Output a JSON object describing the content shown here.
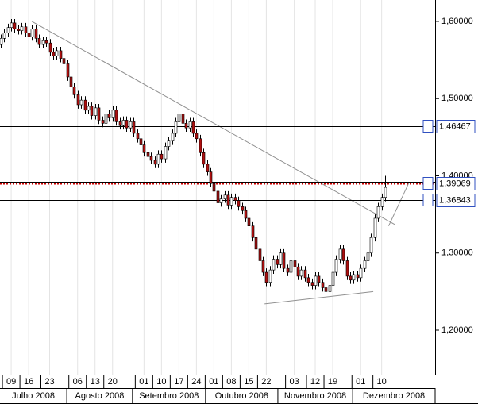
{
  "chart_data": {
    "type": "candlestick",
    "up_color": "#ffffff",
    "down_color": "#b01010",
    "ylim": [
      1.1527,
      1.6277
    ],
    "yticks": [
      {
        "value": 1.6,
        "label": "1,60000"
      },
      {
        "value": 1.5,
        "label": "1,50000"
      },
      {
        "value": 1.4,
        "label": "1,40000"
      },
      {
        "value": 1.3,
        "label": "1,30000"
      },
      {
        "value": 1.2,
        "label": "1,20000"
      }
    ],
    "xlim": [
      -0.2,
      124.3
    ],
    "xticks": [
      {
        "value": 3,
        "label": "09"
      },
      {
        "value": 8,
        "label": "16"
      },
      {
        "value": 14,
        "label": "23"
      },
      {
        "value": 22,
        "label": "06"
      },
      {
        "value": 27,
        "label": "13"
      },
      {
        "value": 32,
        "label": "20"
      },
      {
        "value": 41,
        "label": "01"
      },
      {
        "value": 46,
        "label": "10"
      },
      {
        "value": 51,
        "label": "17"
      },
      {
        "value": 56,
        "label": "24"
      },
      {
        "value": 61,
        "label": "01"
      },
      {
        "value": 66,
        "label": "08"
      },
      {
        "value": 71,
        "label": "15"
      },
      {
        "value": 76,
        "label": "22"
      },
      {
        "value": 84,
        "label": "03"
      },
      {
        "value": 90,
        "label": "12"
      },
      {
        "value": 95,
        "label": "19"
      },
      {
        "value": 103,
        "label": "01"
      },
      {
        "value": 109,
        "label": "10"
      }
    ],
    "months": [
      "Julho 2008",
      "Agosto 2008",
      "Setembro 2008",
      "Outubro 2008",
      "Novembro 2008",
      "Dezembro 2008"
    ],
    "month_edges": [
      -0.2,
      18.9,
      37.7,
      58.6,
      79.3,
      100.7,
      124.3
    ],
    "levels": [
      {
        "value": 1.46467,
        "label": "1,46467",
        "color": "#000000"
      },
      {
        "value": 1.3923,
        "color": "#000000"
      },
      {
        "value": 1.39069,
        "label": "1,39069",
        "color": "#d00000",
        "style": "dotted"
      },
      {
        "value": 1.36843,
        "label": "1,36843",
        "color": "#000000"
      }
    ],
    "trendlines": [
      {
        "x": [
          8.9,
          112.7
        ],
        "y": [
          1.6,
          1.337
        ]
      },
      {
        "x": [
          75.5,
          106.6
        ],
        "y": [
          1.234,
          1.25
        ]
      },
      {
        "x": [
          111,
          116.8
        ],
        "y": [
          1.335,
          1.391
        ]
      }
    ],
    "ohlc": [
      [
        1.57,
        1.583,
        1.565,
        1.578
      ],
      [
        1.578,
        1.59,
        1.573,
        1.585
      ],
      [
        1.585,
        1.597,
        1.58,
        1.592
      ],
      [
        1.592,
        1.603,
        1.587,
        1.598
      ],
      [
        1.598,
        1.603,
        1.585,
        1.59
      ],
      [
        1.59,
        1.595,
        1.583,
        1.588
      ],
      [
        1.588,
        1.598,
        1.583,
        1.593
      ],
      [
        1.593,
        1.598,
        1.58,
        1.585
      ],
      [
        1.585,
        1.59,
        1.575,
        1.58
      ],
      [
        1.58,
        1.595,
        1.575,
        1.59
      ],
      [
        1.59,
        1.595,
        1.573,
        1.578
      ],
      [
        1.578,
        1.583,
        1.565,
        1.57
      ],
      [
        1.57,
        1.58,
        1.565,
        1.575
      ],
      [
        1.575,
        1.58,
        1.567,
        1.572
      ],
      [
        1.572,
        1.577,
        1.555,
        1.56
      ],
      [
        1.56,
        1.565,
        1.55,
        1.555
      ],
      [
        1.555,
        1.567,
        1.55,
        1.562
      ],
      [
        1.562,
        1.567,
        1.547,
        1.552
      ],
      [
        1.552,
        1.557,
        1.54,
        1.545
      ],
      [
        1.545,
        1.55,
        1.523,
        1.528
      ],
      [
        1.528,
        1.533,
        1.51,
        1.515
      ],
      [
        1.515,
        1.52,
        1.5,
        1.505
      ],
      [
        1.505,
        1.51,
        1.487,
        1.492
      ],
      [
        1.492,
        1.503,
        1.487,
        1.498
      ],
      [
        1.498,
        1.503,
        1.48,
        1.485
      ],
      [
        1.485,
        1.495,
        1.48,
        1.49
      ],
      [
        1.49,
        1.495,
        1.473,
        1.478
      ],
      [
        1.478,
        1.493,
        1.473,
        1.488
      ],
      [
        1.488,
        1.493,
        1.467,
        1.472
      ],
      [
        1.472,
        1.477,
        1.463,
        1.468
      ],
      [
        1.468,
        1.485,
        1.463,
        1.48
      ],
      [
        1.48,
        1.485,
        1.47,
        1.475
      ],
      [
        1.475,
        1.49,
        1.47,
        1.485
      ],
      [
        1.485,
        1.49,
        1.465,
        1.47
      ],
      [
        1.47,
        1.475,
        1.46,
        1.465
      ],
      [
        1.465,
        1.477,
        1.46,
        1.472
      ],
      [
        1.472,
        1.477,
        1.457,
        1.462
      ],
      [
        1.462,
        1.475,
        1.457,
        1.47
      ],
      [
        1.47,
        1.475,
        1.45,
        1.455
      ],
      [
        1.455,
        1.46,
        1.443,
        1.448
      ],
      [
        1.448,
        1.453,
        1.435,
        1.44
      ],
      [
        1.44,
        1.445,
        1.425,
        1.43
      ],
      [
        1.43,
        1.435,
        1.42,
        1.425
      ],
      [
        1.425,
        1.43,
        1.415,
        1.42
      ],
      [
        1.42,
        1.425,
        1.41,
        1.415
      ],
      [
        1.415,
        1.433,
        1.41,
        1.428
      ],
      [
        1.428,
        1.433,
        1.417,
        1.422
      ],
      [
        1.422,
        1.443,
        1.417,
        1.438
      ],
      [
        1.438,
        1.45,
        1.433,
        1.445
      ],
      [
        1.445,
        1.46,
        1.44,
        1.455
      ],
      [
        1.455,
        1.475,
        1.45,
        1.47
      ],
      [
        1.47,
        1.485,
        1.465,
        1.48
      ],
      [
        1.48,
        1.485,
        1.463,
        1.468
      ],
      [
        1.468,
        1.473,
        1.457,
        1.462
      ],
      [
        1.462,
        1.475,
        1.457,
        1.47
      ],
      [
        1.47,
        1.475,
        1.45,
        1.455
      ],
      [
        1.455,
        1.46,
        1.443,
        1.448
      ],
      [
        1.448,
        1.453,
        1.425,
        1.43
      ],
      [
        1.43,
        1.435,
        1.41,
        1.415
      ],
      [
        1.415,
        1.42,
        1.4,
        1.405
      ],
      [
        1.405,
        1.41,
        1.385,
        1.39
      ],
      [
        1.39,
        1.395,
        1.375,
        1.38
      ],
      [
        1.38,
        1.385,
        1.36,
        1.365
      ],
      [
        1.365,
        1.375,
        1.36,
        1.37
      ],
      [
        1.37,
        1.38,
        1.365,
        1.375
      ],
      [
        1.375,
        1.38,
        1.357,
        1.362
      ],
      [
        1.362,
        1.377,
        1.357,
        1.372
      ],
      [
        1.372,
        1.377,
        1.363,
        1.368
      ],
      [
        1.368,
        1.373,
        1.355,
        1.36
      ],
      [
        1.36,
        1.365,
        1.35,
        1.355
      ],
      [
        1.355,
        1.36,
        1.34,
        1.345
      ],
      [
        1.345,
        1.35,
        1.33,
        1.335
      ],
      [
        1.335,
        1.34,
        1.315,
        1.32
      ],
      [
        1.32,
        1.325,
        1.3,
        1.305
      ],
      [
        1.305,
        1.31,
        1.285,
        1.29
      ],
      [
        1.29,
        1.295,
        1.27,
        1.275
      ],
      [
        1.275,
        1.28,
        1.257,
        1.262
      ],
      [
        1.262,
        1.283,
        1.257,
        1.278
      ],
      [
        1.278,
        1.297,
        1.273,
        1.292
      ],
      [
        1.292,
        1.297,
        1.28,
        1.285
      ],
      [
        1.285,
        1.305,
        1.28,
        1.3
      ],
      [
        1.3,
        1.305,
        1.275,
        1.28
      ],
      [
        1.28,
        1.285,
        1.27,
        1.275
      ],
      [
        1.275,
        1.295,
        1.27,
        1.29
      ],
      [
        1.29,
        1.295,
        1.277,
        1.282
      ],
      [
        1.282,
        1.287,
        1.265,
        1.27
      ],
      [
        1.27,
        1.283,
        1.265,
        1.278
      ],
      [
        1.278,
        1.283,
        1.263,
        1.268
      ],
      [
        1.268,
        1.273,
        1.257,
        1.262
      ],
      [
        1.262,
        1.267,
        1.253,
        1.258
      ],
      [
        1.258,
        1.275,
        1.253,
        1.27
      ],
      [
        1.27,
        1.275,
        1.257,
        1.262
      ],
      [
        1.262,
        1.267,
        1.25,
        1.255
      ],
      [
        1.255,
        1.26,
        1.245,
        1.25
      ],
      [
        1.25,
        1.263,
        1.245,
        1.258
      ],
      [
        1.258,
        1.28,
        1.253,
        1.275
      ],
      [
        1.275,
        1.297,
        1.27,
        1.292
      ],
      [
        1.292,
        1.31,
        1.287,
        1.305
      ],
      [
        1.305,
        1.31,
        1.285,
        1.29
      ],
      [
        1.29,
        1.295,
        1.265,
        1.27
      ],
      [
        1.27,
        1.275,
        1.26,
        1.265
      ],
      [
        1.265,
        1.277,
        1.26,
        1.272
      ],
      [
        1.272,
        1.277,
        1.263,
        1.268
      ],
      [
        1.268,
        1.285,
        1.263,
        1.28
      ],
      [
        1.28,
        1.295,
        1.275,
        1.29
      ],
      [
        1.29,
        1.305,
        1.285,
        1.3
      ],
      [
        1.3,
        1.325,
        1.295,
        1.32
      ],
      [
        1.32,
        1.35,
        1.315,
        1.345
      ],
      [
        1.345,
        1.365,
        1.34,
        1.36
      ],
      [
        1.36,
        1.377,
        1.355,
        1.372
      ],
      [
        1.372,
        1.4,
        1.367,
        1.385
      ]
    ]
  }
}
